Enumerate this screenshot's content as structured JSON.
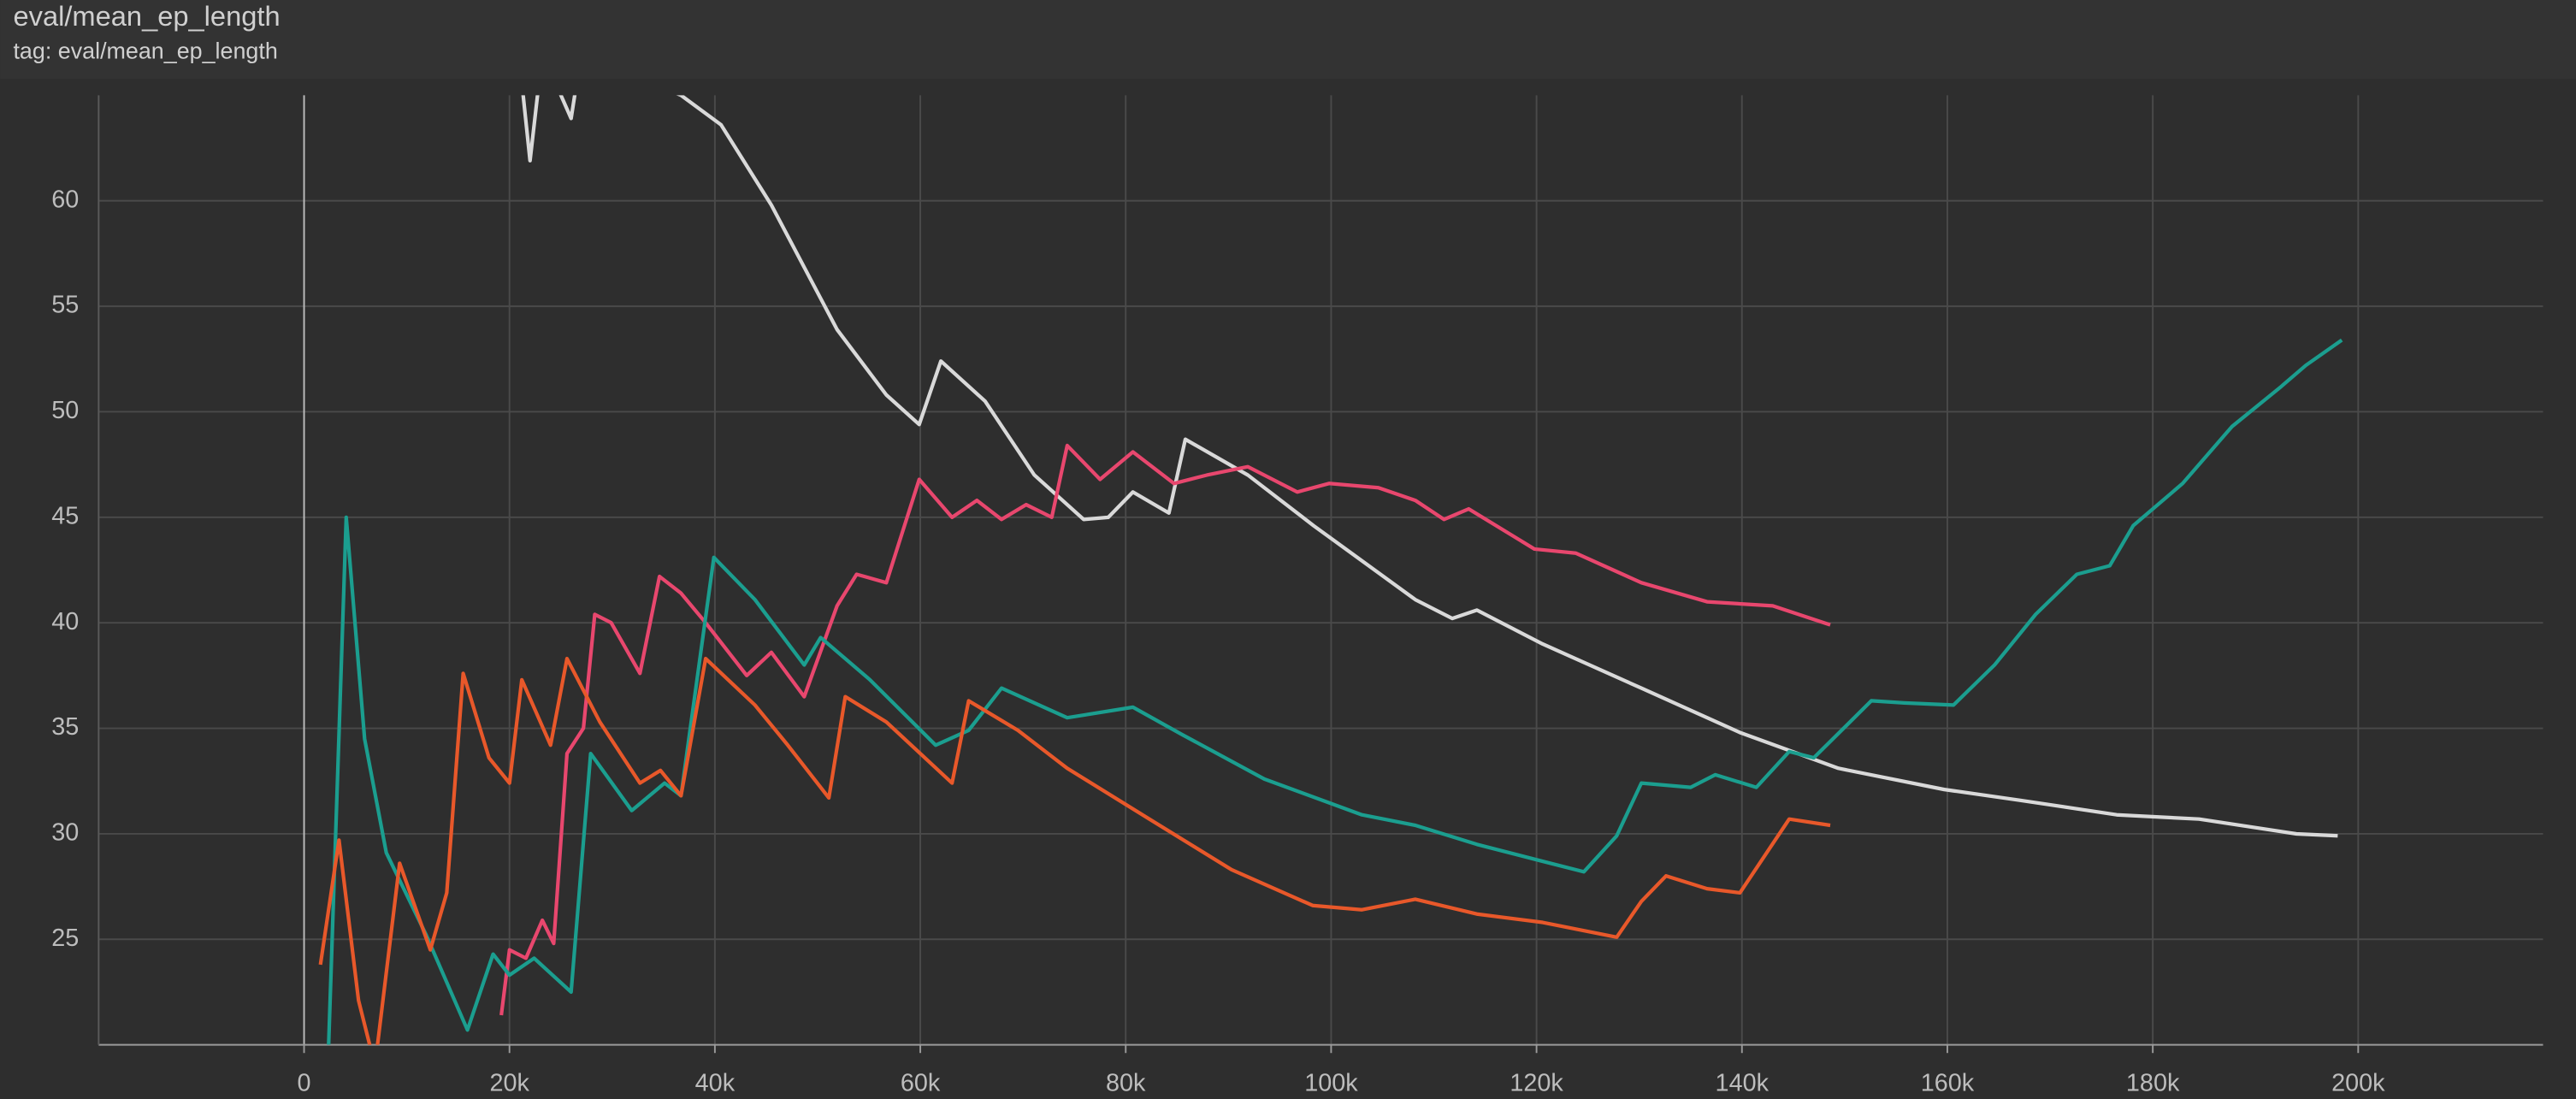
{
  "chart_data": {
    "type": "line",
    "title": "eval/mean_ep_length",
    "subtitle": "tag: eval/mean_ep_length",
    "xlim": [
      -20000,
      218000
    ],
    "ylim": [
      20,
      65
    ],
    "xticks": [
      0,
      {
        "value": 20000,
        "label": "20k"
      },
      {
        "value": 40000,
        "label": "40k"
      },
      {
        "value": 60000,
        "label": "60k"
      },
      {
        "value": 80000,
        "label": "80k"
      },
      {
        "value": 100000,
        "label": "100k"
      },
      {
        "value": 120000,
        "label": "120k"
      },
      {
        "value": 140000,
        "label": "140k"
      },
      {
        "value": 160000,
        "label": "160k"
      },
      {
        "value": 180000,
        "label": "180k"
      },
      {
        "value": 200000,
        "label": "200k"
      }
    ],
    "yticks": [
      25,
      30,
      35,
      40,
      45,
      50,
      55,
      60
    ],
    "grid": true,
    "series": [
      {
        "color": "#d9d9d9",
        "x": [
          20900,
          22000,
          23200,
          26000,
          27000,
          36700,
          40600,
          45500,
          51900,
          56700,
          59900,
          62000,
          66300,
          71100,
          75900,
          78300,
          80700,
          84200,
          85800,
          91900,
          98300,
          108200,
          111800,
          114200,
          120600,
          130200,
          139800,
          149400,
          159700,
          166900,
          176500,
          184500,
          194000,
          198000
        ],
        "values": [
          67,
          61.9,
          67,
          63.9,
          67,
          65,
          63.6,
          59.8,
          53.9,
          50.8,
          49.4,
          52.4,
          50.5,
          47,
          44.9,
          45,
          46.2,
          45.2,
          48.7,
          47,
          44.6,
          41.1,
          40.2,
          40.6,
          39,
          36.9,
          34.8,
          33.1,
          32.1,
          31.6,
          30.9,
          30.7,
          30,
          29.9
        ]
      },
      {
        "color": "#e8476e",
        "x": [
          19200,
          20000,
          21600,
          23200,
          24300,
          25600,
          27200,
          28300,
          29900,
          32700,
          34600,
          36700,
          39100,
          43100,
          45500,
          48700,
          51900,
          53800,
          56700,
          59900,
          63100,
          65500,
          67900,
          70300,
          72800,
          74300,
          77500,
          80700,
          84700,
          87900,
          91900,
          96700,
          99800,
          104600,
          108200,
          111000,
          113400,
          119800,
          123800,
          130200,
          136600,
          143000,
          148600
        ],
        "values": [
          21.4,
          24.5,
          24.1,
          25.9,
          24.8,
          33.8,
          35,
          40.4,
          40,
          37.6,
          42.2,
          41.4,
          40,
          37.5,
          38.6,
          36.5,
          40.8,
          42.3,
          41.9,
          46.8,
          45,
          45.8,
          44.9,
          45.6,
          45,
          48.4,
          46.8,
          48.1,
          46.6,
          47,
          47.4,
          46.2,
          46.6,
          46.4,
          45.8,
          44.9,
          45.4,
          43.5,
          43.3,
          41.9,
          41,
          40.8,
          39.9
        ]
      },
      {
        "color": "#1b9e8f",
        "x": [
          2400,
          4100,
          5900,
          8000,
          11900,
          15900,
          18400,
          20000,
          22400,
          26000,
          27900,
          31900,
          35100,
          36700,
          39900,
          43900,
          48700,
          50300,
          55100,
          61500,
          64700,
          67900,
          74300,
          80700,
          85500,
          93500,
          103000,
          108200,
          114200,
          120600,
          124600,
          127800,
          130200,
          135000,
          137400,
          141400,
          144600,
          147000,
          152600,
          155800,
          160600,
          164600,
          168600,
          172600,
          175800,
          178100,
          182900,
          187700,
          192500,
          194900,
          198400
        ],
        "values": [
          20,
          45,
          34.5,
          29.1,
          25.2,
          20.7,
          24.3,
          23.3,
          24.1,
          22.5,
          33.8,
          31.1,
          32.4,
          31.8,
          43.1,
          41.1,
          38,
          39.3,
          37.3,
          34.2,
          34.9,
          36.9,
          35.5,
          36,
          34.7,
          32.6,
          30.9,
          30.4,
          29.5,
          28.7,
          28.2,
          29.9,
          32.4,
          32.2,
          32.8,
          32.2,
          33.9,
          33.6,
          36.3,
          36.2,
          36.1,
          38,
          40.4,
          42.3,
          42.7,
          44.6,
          46.6,
          49.3,
          51.2,
          52.2,
          53.4
        ]
      },
      {
        "color": "#e8582a",
        "x": [
          1600,
          3400,
          5300,
          6900,
          9300,
          12300,
          13900,
          15500,
          18000,
          20000,
          21200,
          24000,
          25600,
          28800,
          32700,
          34700,
          36700,
          39100,
          43900,
          47100,
          51100,
          52700,
          56700,
          63100,
          64700,
          69500,
          74300,
          82300,
          90300,
          98200,
          103000,
          108200,
          114200,
          120600,
          127800,
          130200,
          132600,
          136600,
          139800,
          144600,
          148600
        ],
        "values": [
          23.8,
          29.7,
          22.1,
          19,
          28.6,
          24.5,
          27.2,
          37.6,
          33.6,
          32.4,
          37.3,
          34.2,
          38.3,
          35.3,
          32.4,
          33,
          31.8,
          38.3,
          36.1,
          34.2,
          31.7,
          36.5,
          35.3,
          32.4,
          36.3,
          34.9,
          33.1,
          30.7,
          28.3,
          26.6,
          26.4,
          26.9,
          26.2,
          25.8,
          25.1,
          26.8,
          28,
          27.4,
          27.2,
          30.7,
          30.4
        ]
      }
    ]
  }
}
